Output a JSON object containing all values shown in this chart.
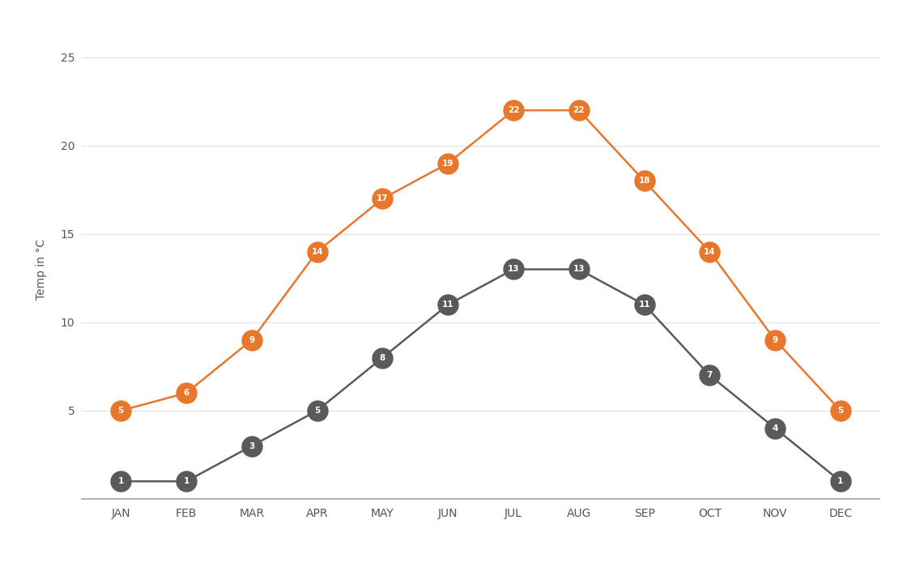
{
  "months": [
    "JAN",
    "FEB",
    "MAR",
    "APR",
    "MAY",
    "JUN",
    "JUL",
    "AUG",
    "SEP",
    "OCT",
    "NOV",
    "DEC"
  ],
  "max_temps": [
    5,
    6,
    9,
    14,
    17,
    19,
    22,
    22,
    18,
    14,
    9,
    5
  ],
  "min_temps": [
    1,
    1,
    3,
    5,
    8,
    11,
    13,
    13,
    11,
    7,
    4,
    1
  ],
  "orange_color": "#E8772E",
  "gray_color": "#5A5A5A",
  "background_color": "#FFFFFF",
  "ylabel": "Temp in °C",
  "ylim": [
    0,
    26
  ],
  "yticks": [
    0,
    5,
    10,
    15,
    20,
    25
  ],
  "marker_size": 18,
  "line_width": 1.8,
  "font_size_labels": 10,
  "font_size_values": 7.5,
  "grid_color": "#E0E0E0",
  "tick_label_color": "#555555",
  "spine_color": "#AAAAAA"
}
